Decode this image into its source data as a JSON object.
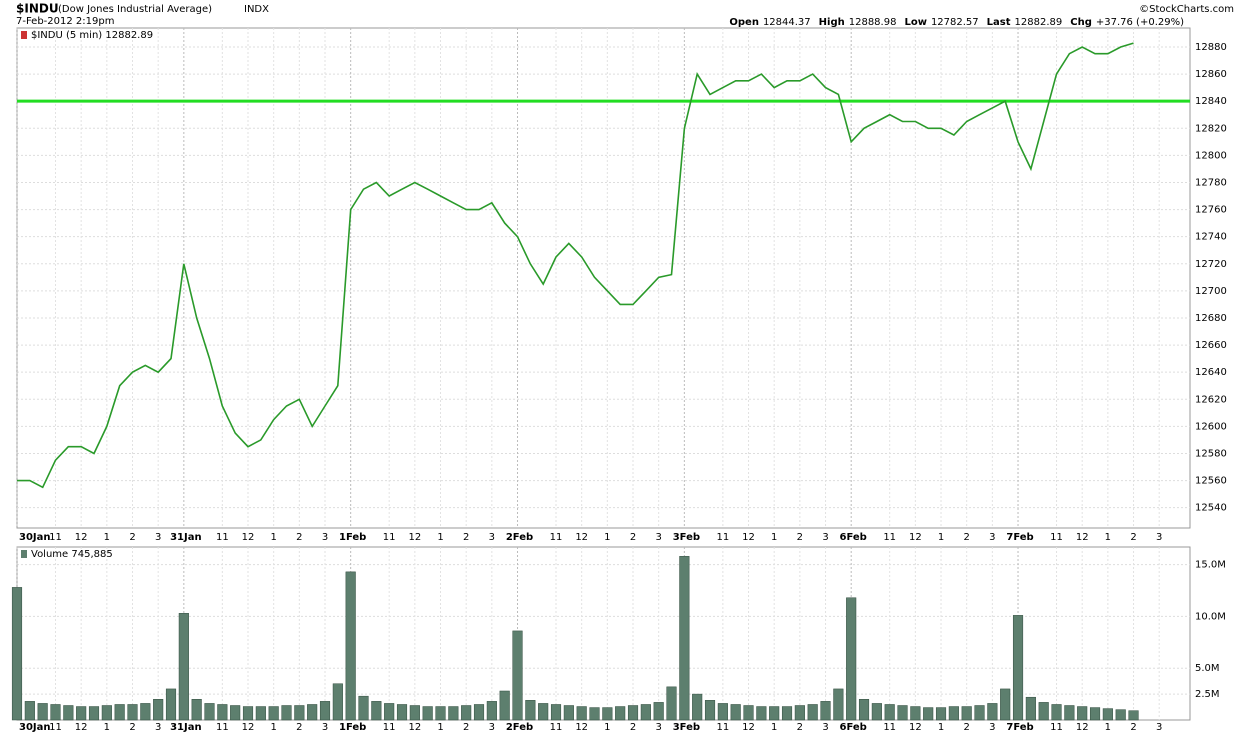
{
  "header": {
    "symbol": "$INDU",
    "name": "(Dow Jones Industrial Average)",
    "exchange": "INDX",
    "date": "7-Feb-2012 2:19pm",
    "credit": "©StockCharts.com",
    "stats": [
      {
        "label": "Open",
        "value": "12844.37"
      },
      {
        "label": "High",
        "value": "12888.98"
      },
      {
        "label": "Low",
        "value": "12782.57"
      },
      {
        "label": "Last",
        "value": "12882.89"
      },
      {
        "label": "Chg",
        "value": "+37.76 (+0.29%)"
      }
    ]
  },
  "chart_data": [
    {
      "type": "line",
      "legend": "$INDU (5 min) 12882.89",
      "x": [
        0,
        0.5,
        1,
        1.5,
        2,
        2.5,
        3,
        3.5,
        4,
        4.5,
        5,
        5.5,
        6,
        6.5,
        7,
        7.5,
        8,
        8.5,
        9,
        9.5,
        10,
        10.5,
        11,
        11.5,
        12,
        12.5,
        13,
        13.5,
        14,
        14.5,
        15,
        15.5,
        16,
        16.5,
        17,
        17.5,
        18,
        18.5,
        19,
        19.5,
        20,
        20.5,
        21,
        21.5,
        22,
        22.5,
        23,
        23.5,
        24,
        24.5,
        25,
        25.5,
        26,
        26.5,
        27,
        27.5,
        28,
        28.5,
        29,
        29.5,
        30,
        30.5,
        31,
        31.5,
        32,
        32.5,
        33,
        33.5,
        34,
        34.5,
        35,
        35.5,
        36,
        36.5,
        37,
        37.5,
        38,
        38.5,
        39,
        39.5,
        40,
        40.5,
        41,
        41.5,
        42,
        42.5,
        43,
        43.5
      ],
      "series": [
        {
          "name": "$INDU",
          "color": "#2a9a2a",
          "values": [
            12560,
            12560,
            12555,
            12575,
            12585,
            12585,
            12580,
            12600,
            12630,
            12640,
            12645,
            12640,
            12650,
            12720,
            12680,
            12650,
            12615,
            12595,
            12585,
            12590,
            12605,
            12615,
            12620,
            12600,
            12615,
            12630,
            12760,
            12775,
            12780,
            12770,
            12775,
            12780,
            12775,
            12770,
            12765,
            12760,
            12760,
            12765,
            12750,
            12740,
            12720,
            12705,
            12725,
            12735,
            12725,
            12710,
            12700,
            12690,
            12690,
            12700,
            12710,
            12712,
            12820,
            12860,
            12845,
            12850,
            12855,
            12855,
            12860,
            12850,
            12855,
            12855,
            12860,
            12850,
            12845,
            12810,
            12820,
            12825,
            12830,
            12825,
            12825,
            12820,
            12820,
            12815,
            12825,
            12830,
            12835,
            12840,
            12810,
            12790,
            12825,
            12860,
            12875,
            12880,
            12875,
            12875,
            12880,
            12882.89
          ]
        }
      ],
      "horizontal_line": {
        "value": 12840,
        "color": "#22dd22"
      },
      "xlim": [
        0,
        45.7
      ],
      "ylim": [
        12525,
        12894
      ],
      "yticks": [
        12540,
        12560,
        12580,
        12600,
        12620,
        12640,
        12660,
        12680,
        12700,
        12720,
        12740,
        12760,
        12780,
        12800,
        12820,
        12840,
        12860,
        12880
      ],
      "xticks": [
        {
          "value": 0,
          "label": "30Jan"
        },
        {
          "value": 1.5,
          "label": "11"
        },
        {
          "value": 2.5,
          "label": "12"
        },
        {
          "value": 3.5,
          "label": "1"
        },
        {
          "value": 4.5,
          "label": "2"
        },
        {
          "value": 5.5,
          "label": "3"
        },
        {
          "value": 6.5,
          "label": "31Jan"
        },
        {
          "value": 8,
          "label": "11"
        },
        {
          "value": 9,
          "label": "12"
        },
        {
          "value": 10,
          "label": "1"
        },
        {
          "value": 11,
          "label": "2"
        },
        {
          "value": 12,
          "label": "3"
        },
        {
          "value": 13,
          "label": "1Feb"
        },
        {
          "value": 14.5,
          "label": "11"
        },
        {
          "value": 15.5,
          "label": "12"
        },
        {
          "value": 16.5,
          "label": "1"
        },
        {
          "value": 17.5,
          "label": "2"
        },
        {
          "value": 18.5,
          "label": "3"
        },
        {
          "value": 19.5,
          "label": "2Feb"
        },
        {
          "value": 21,
          "label": "11"
        },
        {
          "value": 22,
          "label": "12"
        },
        {
          "value": 23,
          "label": "1"
        },
        {
          "value": 24,
          "label": "2"
        },
        {
          "value": 25,
          "label": "3"
        },
        {
          "value": 26,
          "label": "3Feb"
        },
        {
          "value": 27.5,
          "label": "11"
        },
        {
          "value": 28.5,
          "label": "12"
        },
        {
          "value": 29.5,
          "label": "1"
        },
        {
          "value": 30.5,
          "label": "2"
        },
        {
          "value": 31.5,
          "label": "3"
        },
        {
          "value": 32.5,
          "label": "6Feb"
        },
        {
          "value": 34,
          "label": "11"
        },
        {
          "value": 35,
          "label": "12"
        },
        {
          "value": 36,
          "label": "1"
        },
        {
          "value": 37,
          "label": "2"
        },
        {
          "value": 38,
          "label": "3"
        },
        {
          "value": 39,
          "label": "7Feb"
        },
        {
          "value": 40.5,
          "label": "11"
        },
        {
          "value": 41.5,
          "label": "12"
        },
        {
          "value": 42.5,
          "label": "1"
        },
        {
          "value": 43.5,
          "label": "2"
        },
        {
          "value": 44.5,
          "label": "3"
        }
      ],
      "grid": true
    },
    {
      "type": "bar",
      "legend": "Volume 745,885",
      "color": "#5d7f6e",
      "x": [
        0,
        0.5,
        1,
        1.5,
        2,
        2.5,
        3,
        3.5,
        4,
        4.5,
        5,
        5.5,
        6,
        6.5,
        7,
        7.5,
        8,
        8.5,
        9,
        9.5,
        10,
        10.5,
        11,
        11.5,
        12,
        12.5,
        13,
        13.5,
        14,
        14.5,
        15,
        15.5,
        16,
        16.5,
        17,
        17.5,
        18,
        18.5,
        19,
        19.5,
        20,
        20.5,
        21,
        21.5,
        22,
        22.5,
        23,
        23.5,
        24,
        24.5,
        25,
        25.5,
        26,
        26.5,
        27,
        27.5,
        28,
        28.5,
        29,
        29.5,
        30,
        30.5,
        31,
        31.5,
        32,
        32.5,
        33,
        33.5,
        34,
        34.5,
        35,
        35.5,
        36,
        36.5,
        37,
        37.5,
        38,
        38.5,
        39,
        39.5,
        40,
        40.5,
        41,
        41.5,
        42,
        42.5,
        43,
        43.5
      ],
      "values": [
        12.8,
        1.8,
        1.6,
        1.5,
        1.4,
        1.3,
        1.3,
        1.4,
        1.5,
        1.5,
        1.6,
        2.0,
        3.0,
        10.3,
        2.0,
        1.6,
        1.5,
        1.4,
        1.3,
        1.3,
        1.3,
        1.4,
        1.4,
        1.5,
        1.8,
        3.5,
        14.3,
        2.3,
        1.8,
        1.6,
        1.5,
        1.4,
        1.3,
        1.3,
        1.3,
        1.4,
        1.5,
        1.8,
        2.8,
        8.6,
        1.9,
        1.6,
        1.5,
        1.4,
        1.3,
        1.2,
        1.2,
        1.3,
        1.4,
        1.5,
        1.7,
        3.2,
        15.8,
        2.5,
        1.9,
        1.6,
        1.5,
        1.4,
        1.3,
        1.3,
        1.3,
        1.4,
        1.5,
        1.8,
        3.0,
        11.8,
        2.0,
        1.6,
        1.5,
        1.4,
        1.3,
        1.2,
        1.2,
        1.3,
        1.3,
        1.4,
        1.6,
        3.0,
        10.1,
        2.2,
        1.7,
        1.5,
        1.4,
        1.3,
        1.2,
        1.1,
        1.0,
        0.9
      ],
      "xlim": [
        0,
        45.7
      ],
      "ylim": [
        0,
        16.7
      ],
      "yticks": [
        {
          "value": 2.5,
          "label": "2.5M"
        },
        {
          "value": 5,
          "label": "5.0M"
        },
        {
          "value": 10,
          "label": "10.0M"
        },
        {
          "value": 15,
          "label": "15.0M"
        }
      ],
      "xticks": [
        {
          "value": 0,
          "label": "30Jan"
        },
        {
          "value": 1.5,
          "label": "11"
        },
        {
          "value": 2.5,
          "label": "12"
        },
        {
          "value": 3.5,
          "label": "1"
        },
        {
          "value": 4.5,
          "label": "2"
        },
        {
          "value": 5.5,
          "label": "3"
        },
        {
          "value": 6.5,
          "label": "31Jan"
        },
        {
          "value": 8,
          "label": "11"
        },
        {
          "value": 9,
          "label": "12"
        },
        {
          "value": 10,
          "label": "1"
        },
        {
          "value": 11,
          "label": "2"
        },
        {
          "value": 12,
          "label": "3"
        },
        {
          "value": 13,
          "label": "1Feb"
        },
        {
          "value": 14.5,
          "label": "11"
        },
        {
          "value": 15.5,
          "label": "12"
        },
        {
          "value": 16.5,
          "label": "1"
        },
        {
          "value": 17.5,
          "label": "2"
        },
        {
          "value": 18.5,
          "label": "3"
        },
        {
          "value": 19.5,
          "label": "2Feb"
        },
        {
          "value": 21,
          "label": "11"
        },
        {
          "value": 22,
          "label": "12"
        },
        {
          "value": 23,
          "label": "1"
        },
        {
          "value": 24,
          "label": "2"
        },
        {
          "value": 25,
          "label": "3"
        },
        {
          "value": 26,
          "label": "3Feb"
        },
        {
          "value": 27.5,
          "label": "11"
        },
        {
          "value": 28.5,
          "label": "12"
        },
        {
          "value": 29.5,
          "label": "1"
        },
        {
          "value": 30.5,
          "label": "2"
        },
        {
          "value": 31.5,
          "label": "3"
        },
        {
          "value": 32.5,
          "label": "6Feb"
        },
        {
          "value": 34,
          "label": "11"
        },
        {
          "value": 35,
          "label": "12"
        },
        {
          "value": 36,
          "label": "1"
        },
        {
          "value": 37,
          "label": "2"
        },
        {
          "value": 38,
          "label": "3"
        },
        {
          "value": 39,
          "label": "7Feb"
        },
        {
          "value": 40.5,
          "label": "11"
        },
        {
          "value": 41.5,
          "label": "12"
        },
        {
          "value": 42.5,
          "label": "1"
        },
        {
          "value": 43.5,
          "label": "2"
        },
        {
          "value": 44.5,
          "label": "3"
        }
      ],
      "grid": true
    }
  ]
}
